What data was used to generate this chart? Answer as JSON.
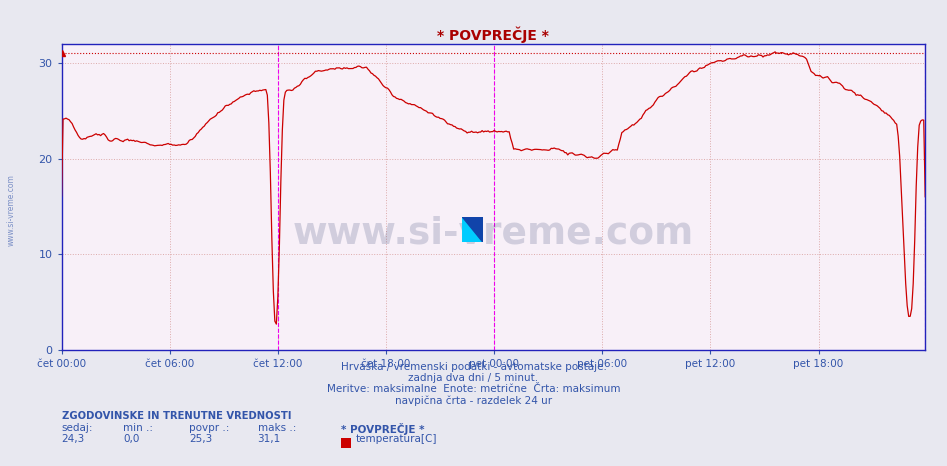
{
  "title": "* POVPREČJE *",
  "title_color": "#aa0000",
  "bg_color": "#e8e8f0",
  "plot_bg_color": "#f8f0f8",
  "grid_color": "#ddaaaa",
  "axis_color": "#2222bb",
  "tick_label_color": "#3355aa",
  "line_color": "#cc0000",
  "max_line_color": "#cc0000",
  "vline_color": "#ee00ee",
  "ylim": [
    0,
    32
  ],
  "yticks": [
    0,
    10,
    20,
    30
  ],
  "footer_color": "#3355aa",
  "watermark_color": "#223366",
  "watermark_text": "www.si-vreme.com",
  "watermark_alpha": 0.18,
  "side_watermark_color": "#3355aa",
  "max_value": 31.1,
  "footer_lines": [
    "Hrvaška / vremenski podatki - avtomatske postaje.",
    "zadnja dva dni / 5 minut.",
    "Meritve: maksimalne  Enote: metrične  Črta: maksimum",
    "navpična črta - razdelek 24 ur"
  ],
  "stats_header": "ZGODOVINSKE IN TRENUTNE VREDNOSTI",
  "legend_label": "temperatura[C]",
  "legend_color": "#cc0000",
  "num_points": 576,
  "xtick_labels": [
    "čet 00:00",
    "čet 06:00",
    "čet 12:00",
    "čet 18:00",
    "pet 00:00",
    "pet 06:00",
    "pet 12:00",
    "pet 18:00"
  ],
  "xtick_positions": [
    0,
    72,
    144,
    216,
    288,
    360,
    432,
    504
  ]
}
